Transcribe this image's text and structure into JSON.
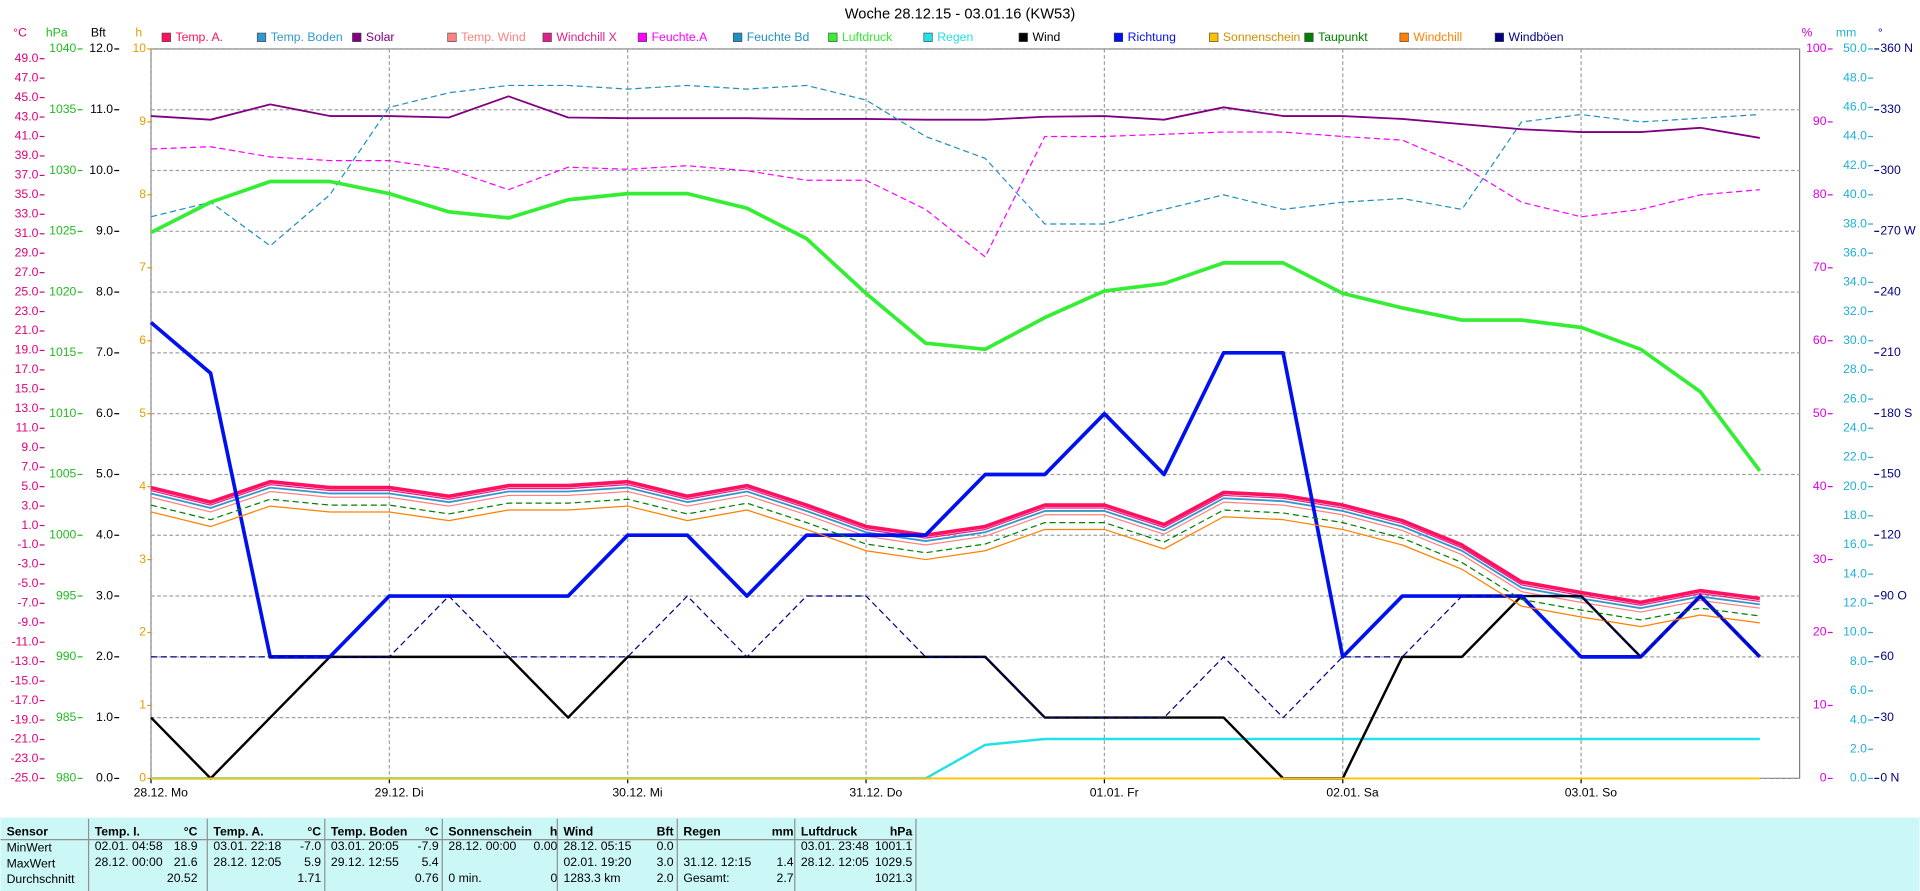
{
  "chart_data": {
    "type": "line",
    "title": "Woche 28.12.15 - 03.01.16 (KW53)",
    "x": [
      0,
      6,
      12,
      18,
      24,
      30,
      36,
      42,
      48,
      54,
      60,
      66,
      72,
      78,
      84,
      90,
      96,
      102,
      108,
      114,
      120,
      126,
      132,
      138,
      144,
      150,
      156,
      162
    ],
    "xlim": [
      0,
      166
    ],
    "xticks": [
      {
        "value": 0,
        "label": "28.12. Mo"
      },
      {
        "value": 24,
        "label": "29.12. Di"
      },
      {
        "value": 48,
        "label": "30.12. Mi"
      },
      {
        "value": 72,
        "label": "31.12. Do"
      },
      {
        "value": 96,
        "label": "01.01. Fr"
      },
      {
        "value": 120,
        "label": "02.01. Sa"
      },
      {
        "value": 144,
        "label": "03.01. So"
      }
    ],
    "grid": true,
    "legend": "top",
    "axes": {
      "temp": {
        "label": "°C",
        "color": "#e0007a",
        "lim": [
          -25,
          50
        ],
        "ticks": [
          {
            "value": -25,
            "label": "-25.0"
          },
          {
            "value": -23,
            "label": "-23.0"
          },
          {
            "value": -21,
            "label": "-21.0"
          },
          {
            "value": -19,
            "label": "-19.0"
          },
          {
            "value": -17,
            "label": "-17.0"
          },
          {
            "value": -15,
            "label": "-15.0"
          },
          {
            "value": -13,
            "label": "-13.0"
          },
          {
            "value": -11,
            "label": "-11.0"
          },
          {
            "value": -9,
            "label": "-9.0"
          },
          {
            "value": -7,
            "label": "-7.0"
          },
          {
            "value": -5,
            "label": "-5.0"
          },
          {
            "value": -3,
            "label": "-3.0"
          },
          {
            "value": -1,
            "label": "-1.0"
          },
          {
            "value": 1,
            "label": "1.0"
          },
          {
            "value": 3,
            "label": "3.0"
          },
          {
            "value": 5,
            "label": "5.0"
          },
          {
            "value": 7,
            "label": "7.0"
          },
          {
            "value": 9,
            "label": "9.0"
          },
          {
            "value": 11,
            "label": "11.0"
          },
          {
            "value": 13,
            "label": "13.0"
          },
          {
            "value": 15,
            "label": "15.0"
          },
          {
            "value": 17,
            "label": "17.0"
          },
          {
            "value": 19,
            "label": "19.0"
          },
          {
            "value": 21,
            "label": "21.0"
          },
          {
            "value": 23,
            "label": "23.0"
          },
          {
            "value": 25,
            "label": "25.0"
          },
          {
            "value": 27,
            "label": "27.0"
          },
          {
            "value": 29,
            "label": "29.0"
          },
          {
            "value": 31,
            "label": "31.0"
          },
          {
            "value": 33,
            "label": "33.0"
          },
          {
            "value": 35,
            "label": "35.0"
          },
          {
            "value": 37,
            "label": "37.0"
          },
          {
            "value": 39,
            "label": "39.0"
          },
          {
            "value": 41,
            "label": "41.0"
          },
          {
            "value": 43,
            "label": "43.0"
          },
          {
            "value": 45,
            "label": "45.0"
          },
          {
            "value": 47,
            "label": "47.0"
          },
          {
            "value": 49,
            "label": "49.0"
          }
        ]
      },
      "hpa": {
        "label": "hPa",
        "color": "#22bb22",
        "lim": [
          980,
          1040
        ],
        "ticks": [
          980,
          985,
          990,
          995,
          1000,
          1005,
          1010,
          1015,
          1020,
          1025,
          1030,
          1035,
          1040
        ]
      },
      "bft": {
        "label": "Bft",
        "color": "#000000",
        "lim": [
          0,
          12
        ],
        "ticks": [
          {
            "value": 0,
            "label": "0.0"
          },
          {
            "value": 1,
            "label": "1.0"
          },
          {
            "value": 2,
            "label": "2.0"
          },
          {
            "value": 3,
            "label": "3.0"
          },
          {
            "value": 4,
            "label": "4.0"
          },
          {
            "value": 5,
            "label": "5.0"
          },
          {
            "value": 6,
            "label": "6.0"
          },
          {
            "value": 7,
            "label": "7.0"
          },
          {
            "value": 8,
            "label": "8.0"
          },
          {
            "value": 9,
            "label": "9.0"
          },
          {
            "value": 10,
            "label": "10.0"
          },
          {
            "value": 11,
            "label": "11.0"
          },
          {
            "value": 12,
            "label": "12.0"
          }
        ]
      },
      "h": {
        "label": "h",
        "color": "#e0a000",
        "lim": [
          0,
          10
        ],
        "ticks": [
          0,
          1,
          2,
          3,
          4,
          5,
          6,
          7,
          8,
          9,
          10
        ]
      },
      "pct": {
        "label": "%",
        "color": "#e000e0",
        "lim": [
          0,
          100
        ],
        "ticks": [
          0,
          10,
          20,
          30,
          40,
          50,
          60,
          70,
          80,
          90,
          100
        ]
      },
      "mm": {
        "label": "mm",
        "color": "#20b0d0",
        "lim": [
          0,
          50
        ],
        "ticks": [
          {
            "value": 0,
            "label": "0.0"
          },
          {
            "value": 2,
            "label": "2.0"
          },
          {
            "value": 4,
            "label": "4.0"
          },
          {
            "value": 6,
            "label": "6.0"
          },
          {
            "value": 8,
            "label": "8.0"
          },
          {
            "value": 10,
            "label": "10.0"
          },
          {
            "value": 12,
            "label": "12.0"
          },
          {
            "value": 14,
            "label": "14.0"
          },
          {
            "value": 16,
            "label": "16.0"
          },
          {
            "value": 18,
            "label": "18.0"
          },
          {
            "value": 20,
            "label": "20.0"
          },
          {
            "value": 22,
            "label": "22.0"
          },
          {
            "value": 24,
            "label": "24.0"
          },
          {
            "value": 26,
            "label": "26.0"
          },
          {
            "value": 28,
            "label": "28.0"
          },
          {
            "value": 30,
            "label": "30.0"
          },
          {
            "value": 32,
            "label": "32.0"
          },
          {
            "value": 34,
            "label": "34.0"
          },
          {
            "value": 36,
            "label": "36.0"
          },
          {
            "value": 38,
            "label": "38.0"
          },
          {
            "value": 40,
            "label": "40.0"
          },
          {
            "value": 42,
            "label": "42.0"
          },
          {
            "value": 44,
            "label": "44.0"
          },
          {
            "value": 46,
            "label": "46.0"
          },
          {
            "value": 48,
            "label": "48.0"
          },
          {
            "value": 50,
            "label": "50.0"
          }
        ]
      },
      "dir": {
        "label": "°",
        "color": "#000080",
        "lim": [
          0,
          360
        ],
        "ticks": [
          {
            "value": 0,
            "label": "0 N"
          },
          30,
          60,
          {
            "value": 90,
            "label": "90 O"
          },
          120,
          150,
          {
            "value": 180,
            "label": "180 S"
          },
          210,
          240,
          {
            "value": 270,
            "label": "270 W"
          },
          300,
          330,
          {
            "value": 360,
            "label": "360 N"
          }
        ]
      }
    },
    "series": [
      {
        "name": "Temp. A.",
        "color": "#ff1060",
        "axis": "temp",
        "width": 3,
        "values": [
          4.9,
          3.4,
          5.5,
          4.9,
          4.9,
          4.0,
          5.1,
          5.1,
          5.5,
          4.0,
          5.1,
          3.1,
          0.9,
          0.0,
          0.9,
          3.1,
          3.1,
          1.1,
          4.4,
          4.1,
          3.1,
          1.5,
          -1.0,
          -4.8,
          -5.9,
          -6.9,
          -5.7,
          -6.5
        ]
      },
      {
        "name": "Temp. Boden",
        "color": "#3399cc",
        "axis": "temp",
        "width": 1.5,
        "values": [
          4.3,
          2.8,
          4.9,
          4.3,
          4.3,
          3.4,
          4.5,
          4.5,
          4.9,
          3.4,
          4.5,
          2.5,
          0.3,
          -0.6,
          0.3,
          2.5,
          2.5,
          0.5,
          3.8,
          3.5,
          2.5,
          0.9,
          -1.6,
          -5.4,
          -6.5,
          -7.5,
          -6.3,
          -7.1
        ]
      },
      {
        "name": "Solar",
        "color": "#800080",
        "axis": "pct",
        "width": 1.5,
        "values": [
          90.8,
          90.3,
          92.4,
          90.8,
          90.8,
          90.6,
          93.5,
          90.6,
          90.5,
          90.5,
          90.5,
          90.4,
          90.4,
          90.3,
          90.3,
          90.7,
          90.8,
          90.3,
          92.0,
          90.8,
          90.8,
          90.4,
          89.7,
          89.0,
          88.6,
          88.6,
          89.2,
          87.8
        ]
      },
      {
        "name": "Temp. Wind",
        "color": "#ff8080",
        "axis": "temp",
        "width": 1,
        "values": [
          3.9,
          2.4,
          4.5,
          3.9,
          3.9,
          3.0,
          4.1,
          4.1,
          4.5,
          3.0,
          4.1,
          2.1,
          -0.1,
          -1.0,
          -0.1,
          2.1,
          2.1,
          0.1,
          3.4,
          3.1,
          2.1,
          0.5,
          -2.0,
          -5.8,
          -6.9,
          -7.9,
          -6.7,
          -7.5
        ]
      },
      {
        "name": "Windchill X",
        "color": "#e0208a",
        "axis": "temp",
        "width": 1,
        "values": [
          4.6,
          3.1,
          5.2,
          4.6,
          4.6,
          3.7,
          4.8,
          4.8,
          5.2,
          3.7,
          4.8,
          2.8,
          0.6,
          -0.3,
          0.6,
          2.8,
          2.8,
          0.8,
          4.1,
          3.8,
          2.8,
          1.2,
          -1.3,
          -5.1,
          -6.2,
          -7.2,
          -6.0,
          -6.8
        ]
      },
      {
        "name": "Feuchte.A",
        "color": "#ff00ff",
        "axis": "pct",
        "width": 1,
        "dash": true,
        "values": [
          86.3,
          86.6,
          85.2,
          84.7,
          84.7,
          83.5,
          80.7,
          83.8,
          83.5,
          84.0,
          83.3,
          82.0,
          82.0,
          78.0,
          71.5,
          88.0,
          88.0,
          88.3,
          88.6,
          88.6,
          88.0,
          87.5,
          84.0,
          79.0,
          77.0,
          78.0,
          80.0,
          80.7
        ]
      },
      {
        "name": "Feuchte Bd",
        "color": "#2090c0",
        "axis": "pct",
        "width": 1,
        "dash": true,
        "values": [
          77,
          79,
          73,
          80,
          92,
          94,
          95,
          95,
          94.5,
          95,
          94.5,
          95,
          93,
          88,
          85,
          76,
          76,
          78,
          80,
          78,
          79,
          79.5,
          78,
          90,
          91,
          90,
          90.5,
          91
        ]
      },
      {
        "name": "Luftdruck",
        "color": "#33ee33",
        "axis": "hpa",
        "width": 3,
        "values": [
          1024.9,
          1027.4,
          1029.1,
          1029.1,
          1028.1,
          1026.6,
          1026.1,
          1027.6,
          1028.1,
          1028.1,
          1026.9,
          1024.4,
          1019.9,
          1015.8,
          1015.3,
          1017.9,
          1020.1,
          1020.7,
          1022.4,
          1022.4,
          1019.9,
          1018.7,
          1017.7,
          1017.7,
          1017.1,
          1015.3,
          1011.8,
          1005.3
        ]
      },
      {
        "name": "Regen",
        "color": "#22e0e8",
        "axis": "mm",
        "width": 2,
        "values": [
          0,
          0,
          0,
          0,
          0,
          0,
          0,
          0,
          0,
          0,
          0,
          0,
          0,
          0,
          2.3,
          2.7,
          2.7,
          2.7,
          2.7,
          2.7,
          2.7,
          2.7,
          2.7,
          2.7,
          2.7,
          2.7,
          2.7,
          2.7
        ]
      },
      {
        "name": "Wind",
        "color": "#000000",
        "axis": "bft",
        "width": 2,
        "values": [
          1,
          0,
          1,
          2,
          2,
          2,
          2,
          1,
          2,
          2,
          2,
          2,
          2,
          2,
          2,
          1,
          1,
          1,
          1,
          0,
          0,
          2,
          2,
          3,
          3,
          2,
          3,
          2
        ]
      },
      {
        "name": "Richtung",
        "color": "#0010ee",
        "axis": "dir",
        "width": 3,
        "values": [
          225,
          200,
          60,
          60,
          90,
          90,
          90,
          90,
          120,
          120,
          90,
          120,
          120,
          120,
          150,
          150,
          180,
          150,
          210,
          210,
          60,
          90,
          90,
          90,
          60,
          60,
          90,
          60
        ]
      },
      {
        "name": "Sonnenschein",
        "color": "#ffc000",
        "axis": "h",
        "width": 1.5,
        "values": [
          0,
          0,
          0,
          0,
          0,
          0,
          0,
          0,
          0,
          0,
          0,
          0,
          0,
          0,
          0,
          0,
          0,
          0,
          0,
          0,
          0,
          0,
          0,
          0,
          0,
          0,
          0,
          0
        ]
      },
      {
        "name": "Taupunkt",
        "color": "#008000",
        "axis": "temp",
        "width": 1,
        "dash": true,
        "values": [
          3.1,
          1.6,
          3.7,
          3.1,
          3.1,
          2.2,
          3.3,
          3.3,
          3.7,
          2.2,
          3.3,
          1.3,
          -0.9,
          -1.8,
          -0.9,
          1.3,
          1.3,
          -0.7,
          2.6,
          2.3,
          1.3,
          -0.3,
          -2.8,
          -6.6,
          -7.7,
          -8.7,
          -7.5,
          -8.3
        ]
      },
      {
        "name": "Windchill",
        "color": "#ff8000",
        "axis": "temp",
        "width": 1,
        "values": [
          2.4,
          0.9,
          3.0,
          2.4,
          2.4,
          1.5,
          2.6,
          2.6,
          3.0,
          1.5,
          2.6,
          0.6,
          -1.6,
          -2.5,
          -1.6,
          0.6,
          0.6,
          -1.4,
          1.9,
          1.6,
          0.6,
          -1.0,
          -3.5,
          -7.3,
          -8.4,
          -9.4,
          -8.2,
          -9.0
        ]
      },
      {
        "name": "Windböen",
        "color": "#000080",
        "axis": "bft",
        "width": 1,
        "dash": true,
        "values": [
          2,
          2,
          2,
          2,
          2,
          3,
          2,
          2,
          2,
          3,
          2,
          3,
          3,
          2,
          2,
          1,
          1,
          1,
          2,
          1,
          2,
          2,
          3,
          3,
          3,
          2,
          3,
          2
        ]
      }
    ]
  },
  "stats": {
    "row_labels": [
      "Sensor",
      "MinWert",
      "MaxWert",
      "Durchschnitt"
    ],
    "columns": [
      {
        "name": "Temp. I.",
        "unit": "°C",
        "min": {
          "time": "02.01.  04:58",
          "value": "18.9"
        },
        "max": {
          "time": "28.12.  00:00",
          "value": "21.6"
        },
        "avg": {
          "value": "20.52"
        }
      },
      {
        "name": "Temp. A.",
        "unit": "°C",
        "min": {
          "time": "03.01.  22:18",
          "value": "-7.0"
        },
        "max": {
          "time": "28.12.  12:05",
          "value": "5.9"
        },
        "avg": {
          "value": "1.71"
        }
      },
      {
        "name": "Temp. Boden",
        "unit": "°C",
        "min": {
          "time": "03.01.  20:05",
          "value": "-7.9"
        },
        "max": {
          "time": "29.12.  12:55",
          "value": "5.4"
        },
        "avg": {
          "value": "0.76"
        }
      },
      {
        "name": "Sonnenschein",
        "unit": "h",
        "min": {
          "time": "28.12.  00:00",
          "value": "0.00"
        },
        "avg": {
          "text": "0 min.",
          "value": "0"
        }
      },
      {
        "name": "Wind",
        "unit": "Bft",
        "min": {
          "time": "28.12.  05:15",
          "value": "0.0"
        },
        "max": {
          "time": "02.01.  19:20",
          "value": "3.0"
        },
        "avg": {
          "text": "1283.3 km",
          "value": "2.0"
        }
      },
      {
        "name": "Regen",
        "unit": "mm",
        "max": {
          "time": "31.12.  12:15",
          "value": "1.4"
        },
        "avg": {
          "text": "Gesamt:",
          "value": "2.7"
        }
      },
      {
        "name": "Luftdruck",
        "unit": "hPa",
        "min": {
          "time": "03.01.  23:48",
          "value": "1001.1"
        },
        "max": {
          "time": "28.12.  12:05",
          "value": "1029.5"
        },
        "avg": {
          "value": "1021.3"
        }
      }
    ]
  }
}
